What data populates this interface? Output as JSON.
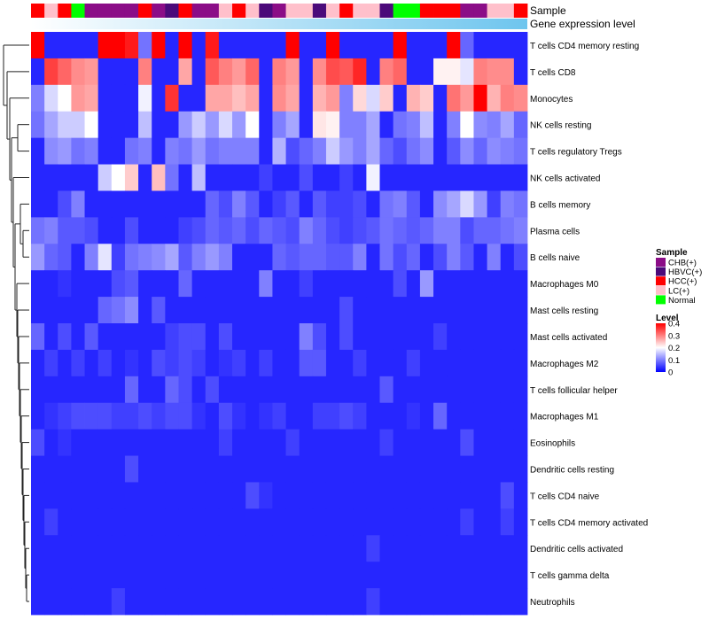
{
  "chart_data": {
    "type": "heatmap",
    "annotation_labels": {
      "sample": "Sample",
      "gene_expression": "Gene expression level"
    },
    "row_labels": [
      "T cells CD4 memory resting",
      "T cells CD8",
      "Monocytes",
      "NK cells resting",
      "T cells regulatory  Tregs",
      "NK cells activated",
      "B cells memory",
      "Plasma cells",
      "B cells naive",
      "Macrophages M0",
      "Mast cells resting",
      "Mast cells activated",
      "Macrophages M2",
      "T cells follicular helper",
      "Macrophages M1",
      "Eosinophils",
      "Dendritic cells resting",
      "T cells CD4 naive",
      "T cells CD4 memory activated",
      "Dendritic cells activated",
      "T cells gamma delta",
      "Neutrophils"
    ],
    "sample_groups": [
      "HCC(+)",
      "LC(+)",
      "HCC(+)",
      "Normal",
      "CHB(+)",
      "CHB(+)",
      "CHB(+)",
      "CHB(+)",
      "HCC(+)",
      "CHB(+)",
      "HBVC(+)",
      "HCC(+)",
      "CHB(+)",
      "CHB(+)",
      "LC(+)",
      "HCC(+)",
      "LC(+)",
      "HBVC(+)",
      "CHB(+)",
      "LC(+)",
      "LC(+)",
      "HBVC(+)",
      "LC(+)",
      "HCC(+)",
      "LC(+)",
      "LC(+)",
      "HBVC(+)",
      "Normal",
      "Normal",
      "HCC(+)",
      "HCC(+)",
      "HCC(+)",
      "CHB(+)",
      "CHB(+)",
      "LC(+)",
      "LC(+)",
      "HCC(+)"
    ],
    "values": [
      [
        0.4,
        0.03,
        0.03,
        0.03,
        0.03,
        0.4,
        0.4,
        0.38,
        0.09,
        0.4,
        0.03,
        0.4,
        0.03,
        0.38,
        0.03,
        0.03,
        0.03,
        0.03,
        0.03,
        0.4,
        0.03,
        0.03,
        0.4,
        0.03,
        0.03,
        0.03,
        0.03,
        0.4,
        0.03,
        0.03,
        0.03,
        0.4,
        0.08,
        0.03,
        0.03,
        0.03,
        0.03
      ],
      [
        0.03,
        0.35,
        0.32,
        0.29,
        0.28,
        0.03,
        0.03,
        0.03,
        0.3,
        0.03,
        0.03,
        0.27,
        0.03,
        0.33,
        0.3,
        0.28,
        0.32,
        0.03,
        0.3,
        0.28,
        0.03,
        0.29,
        0.34,
        0.33,
        0.37,
        0.03,
        0.3,
        0.32,
        0.03,
        0.03,
        0.21,
        0.21,
        0.18,
        0.3,
        0.29,
        0.29,
        0.03
      ],
      [
        0.1,
        0.17,
        0.2,
        0.28,
        0.27,
        0.03,
        0.03,
        0.03,
        0.19,
        0.03,
        0.36,
        0.03,
        0.03,
        0.27,
        0.27,
        0.25,
        0.27,
        0.03,
        0.29,
        0.27,
        0.03,
        0.26,
        0.28,
        0.1,
        0.23,
        0.17,
        0.24,
        0.03,
        0.26,
        0.24,
        0.03,
        0.31,
        0.28,
        0.4,
        0.26,
        0.3,
        0.29
      ],
      [
        0.09,
        0.13,
        0.16,
        0.16,
        0.2,
        0.03,
        0.03,
        0.03,
        0.15,
        0.03,
        0.03,
        0.12,
        0.16,
        0.12,
        0.17,
        0.12,
        0.2,
        0.03,
        0.1,
        0.13,
        0.03,
        0.22,
        0.21,
        0.1,
        0.1,
        0.13,
        0.03,
        0.09,
        0.1,
        0.15,
        0.03,
        0.1,
        0.2,
        0.11,
        0.1,
        0.13,
        0.08
      ],
      [
        0.03,
        0.11,
        0.12,
        0.09,
        0.1,
        0.03,
        0.03,
        0.09,
        0.1,
        0.03,
        0.1,
        0.09,
        0.12,
        0.09,
        0.1,
        0.1,
        0.1,
        0.03,
        0.14,
        0.06,
        0.08,
        0.1,
        0.16,
        0.12,
        0.1,
        0.13,
        0.08,
        0.06,
        0.09,
        0.11,
        0.03,
        0.07,
        0.11,
        0.08,
        0.11,
        0.1,
        0.09
      ],
      [
        0.03,
        0.03,
        0.03,
        0.03,
        0.03,
        0.16,
        0.2,
        0.24,
        0.03,
        0.25,
        0.09,
        0.03,
        0.15,
        0.03,
        0.03,
        0.03,
        0.03,
        0.05,
        0.03,
        0.03,
        0.06,
        0.03,
        0.03,
        0.05,
        0.03,
        0.19,
        0.03,
        0.03,
        0.03,
        0.03,
        0.03,
        0.03,
        0.03,
        0.03,
        0.03,
        0.03,
        0.03
      ],
      [
        0.03,
        0.03,
        0.06,
        0.1,
        0.03,
        0.03,
        0.03,
        0.03,
        0.03,
        0.03,
        0.03,
        0.03,
        0.03,
        0.08,
        0.06,
        0.1,
        0.07,
        0.03,
        0.05,
        0.07,
        0.03,
        0.07,
        0.05,
        0.05,
        0.06,
        0.03,
        0.09,
        0.1,
        0.07,
        0.03,
        0.11,
        0.13,
        0.17,
        0.12,
        0.05,
        0.1,
        0.09
      ],
      [
        0.09,
        0.1,
        0.07,
        0.07,
        0.06,
        0.03,
        0.03,
        0.06,
        0.03,
        0.03,
        0.03,
        0.05,
        0.06,
        0.08,
        0.07,
        0.08,
        0.06,
        0.08,
        0.07,
        0.06,
        0.1,
        0.08,
        0.06,
        0.05,
        0.06,
        0.07,
        0.09,
        0.08,
        0.07,
        0.08,
        0.1,
        0.1,
        0.06,
        0.08,
        0.08,
        0.09,
        0.1
      ],
      [
        0.12,
        0.08,
        0.07,
        0.03,
        0.1,
        0.18,
        0.05,
        0.09,
        0.1,
        0.11,
        0.13,
        0.07,
        0.1,
        0.12,
        0.1,
        0.03,
        0.03,
        0.03,
        0.08,
        0.07,
        0.08,
        0.08,
        0.07,
        0.07,
        0.1,
        0.03,
        0.09,
        0.06,
        0.08,
        0.03,
        0.06,
        0.1,
        0.07,
        0.03,
        0.1,
        0.03,
        0.06
      ],
      [
        0.03,
        0.03,
        0.04,
        0.03,
        0.03,
        0.03,
        0.06,
        0.07,
        0.03,
        0.03,
        0.03,
        0.08,
        0.03,
        0.03,
        0.03,
        0.03,
        0.03,
        0.1,
        0.03,
        0.03,
        0.05,
        0.03,
        0.03,
        0.03,
        0.03,
        0.03,
        0.03,
        0.06,
        0.03,
        0.12,
        0.03,
        0.03,
        0.03,
        0.03,
        0.03,
        0.03,
        0.03
      ],
      [
        0.03,
        0.03,
        0.03,
        0.03,
        0.03,
        0.08,
        0.09,
        0.11,
        0.03,
        0.07,
        0.03,
        0.03,
        0.03,
        0.03,
        0.03,
        0.03,
        0.03,
        0.03,
        0.03,
        0.03,
        0.03,
        0.03,
        0.03,
        0.06,
        0.03,
        0.03,
        0.03,
        0.03,
        0.03,
        0.03,
        0.03,
        0.03,
        0.03,
        0.03,
        0.03,
        0.03,
        0.03
      ],
      [
        0.08,
        0.03,
        0.06,
        0.03,
        0.07,
        0.03,
        0.03,
        0.03,
        0.03,
        0.03,
        0.05,
        0.06,
        0.06,
        0.03,
        0.06,
        0.03,
        0.03,
        0.03,
        0.03,
        0.03,
        0.1,
        0.06,
        0.03,
        0.06,
        0.03,
        0.03,
        0.03,
        0.03,
        0.03,
        0.03,
        0.05,
        0.03,
        0.03,
        0.03,
        0.03,
        0.03,
        0.03
      ],
      [
        0.03,
        0.05,
        0.03,
        0.05,
        0.03,
        0.05,
        0.03,
        0.04,
        0.03,
        0.06,
        0.05,
        0.06,
        0.05,
        0.03,
        0.04,
        0.05,
        0.03,
        0.05,
        0.03,
        0.03,
        0.07,
        0.07,
        0.03,
        0.03,
        0.05,
        0.03,
        0.03,
        0.03,
        0.05,
        0.03,
        0.03,
        0.03,
        0.03,
        0.03,
        0.03,
        0.03,
        0.03
      ],
      [
        0.03,
        0.03,
        0.03,
        0.03,
        0.03,
        0.03,
        0.03,
        0.08,
        0.03,
        0.03,
        0.08,
        0.06,
        0.03,
        0.06,
        0.03,
        0.03,
        0.03,
        0.03,
        0.03,
        0.03,
        0.03,
        0.03,
        0.03,
        0.03,
        0.03,
        0.03,
        0.07,
        0.03,
        0.03,
        0.03,
        0.03,
        0.03,
        0.03,
        0.03,
        0.03,
        0.03,
        0.03
      ],
      [
        0.03,
        0.04,
        0.05,
        0.06,
        0.06,
        0.06,
        0.05,
        0.05,
        0.06,
        0.05,
        0.06,
        0.06,
        0.04,
        0.03,
        0.06,
        0.04,
        0.03,
        0.04,
        0.05,
        0.03,
        0.03,
        0.05,
        0.05,
        0.06,
        0.05,
        0.03,
        0.03,
        0.03,
        0.04,
        0.03,
        0.08,
        0.03,
        0.03,
        0.03,
        0.03,
        0.03,
        0.03
      ],
      [
        0.06,
        0.03,
        0.04,
        0.03,
        0.03,
        0.03,
        0.03,
        0.03,
        0.03,
        0.03,
        0.03,
        0.03,
        0.03,
        0.03,
        0.05,
        0.03,
        0.03,
        0.03,
        0.03,
        0.05,
        0.03,
        0.03,
        0.03,
        0.03,
        0.03,
        0.03,
        0.05,
        0.03,
        0.03,
        0.03,
        0.03,
        0.03,
        0.06,
        0.03,
        0.03,
        0.03,
        0.03
      ],
      [
        0.03,
        0.03,
        0.03,
        0.03,
        0.03,
        0.03,
        0.03,
        0.06,
        0.03,
        0.03,
        0.03,
        0.03,
        0.03,
        0.03,
        0.03,
        0.03,
        0.03,
        0.03,
        0.03,
        0.03,
        0.03,
        0.03,
        0.03,
        0.03,
        0.03,
        0.03,
        0.03,
        0.03,
        0.03,
        0.03,
        0.03,
        0.03,
        0.03,
        0.03,
        0.03,
        0.03,
        0.03
      ],
      [
        0.03,
        0.03,
        0.03,
        0.03,
        0.03,
        0.03,
        0.03,
        0.03,
        0.03,
        0.03,
        0.03,
        0.03,
        0.03,
        0.03,
        0.03,
        0.03,
        0.06,
        0.04,
        0.03,
        0.03,
        0.03,
        0.03,
        0.03,
        0.03,
        0.03,
        0.03,
        0.03,
        0.03,
        0.03,
        0.03,
        0.03,
        0.03,
        0.03,
        0.03,
        0.03,
        0.06,
        0.03
      ],
      [
        0.03,
        0.05,
        0.03,
        0.03,
        0.03,
        0.03,
        0.03,
        0.03,
        0.03,
        0.03,
        0.03,
        0.03,
        0.03,
        0.03,
        0.03,
        0.03,
        0.03,
        0.03,
        0.03,
        0.03,
        0.03,
        0.03,
        0.03,
        0.03,
        0.03,
        0.03,
        0.03,
        0.03,
        0.03,
        0.03,
        0.03,
        0.03,
        0.05,
        0.03,
        0.03,
        0.05,
        0.03
      ],
      [
        0.03,
        0.03,
        0.03,
        0.03,
        0.03,
        0.03,
        0.03,
        0.03,
        0.03,
        0.03,
        0.03,
        0.03,
        0.03,
        0.03,
        0.03,
        0.03,
        0.03,
        0.03,
        0.03,
        0.03,
        0.03,
        0.03,
        0.03,
        0.03,
        0.03,
        0.05,
        0.03,
        0.03,
        0.03,
        0.03,
        0.03,
        0.03,
        0.03,
        0.03,
        0.03,
        0.03,
        0.03
      ],
      [
        0.03,
        0.03,
        0.03,
        0.03,
        0.03,
        0.03,
        0.03,
        0.03,
        0.03,
        0.03,
        0.03,
        0.03,
        0.03,
        0.03,
        0.03,
        0.03,
        0.03,
        0.03,
        0.03,
        0.03,
        0.03,
        0.03,
        0.03,
        0.03,
        0.03,
        0.03,
        0.03,
        0.03,
        0.03,
        0.03,
        0.03,
        0.03,
        0.03,
        0.03,
        0.03,
        0.03,
        0.03
      ],
      [
        0.03,
        0.03,
        0.03,
        0.03,
        0.03,
        0.03,
        0.05,
        0.03,
        0.03,
        0.03,
        0.03,
        0.03,
        0.03,
        0.03,
        0.03,
        0.03,
        0.03,
        0.03,
        0.03,
        0.03,
        0.03,
        0.03,
        0.03,
        0.03,
        0.03,
        0.05,
        0.03,
        0.03,
        0.03,
        0.03,
        0.03,
        0.03,
        0.03,
        0.03,
        0.03,
        0.03,
        0.03
      ]
    ],
    "color_scale": {
      "min": 0,
      "max": 0.4,
      "low": "#0000ff",
      "mid": "#ffffff",
      "mid_value": 0.2,
      "high": "#ff0000"
    },
    "legend": {
      "sample": {
        "title": "Sample",
        "entries": [
          {
            "label": "CHB(+)",
            "color": "#8b0d87"
          },
          {
            "label": "HBVC(+)",
            "color": "#4b0a7a"
          },
          {
            "label": "HCC(+)",
            "color": "#ff0000"
          },
          {
            "label": "LC(+)",
            "color": "#ffc0cb"
          },
          {
            "label": "Normal",
            "color": "#00ff00"
          }
        ]
      },
      "level": {
        "title": "Level",
        "ticks": [
          {
            "value": 0.4,
            "label": "0.4"
          },
          {
            "value": 0.3,
            "label": "0.3"
          },
          {
            "value": 0.2,
            "label": "0.2"
          },
          {
            "value": 0.1,
            "label": "0.1"
          },
          {
            "value": 0,
            "label": "0"
          }
        ]
      }
    },
    "gene_expression_color": "#6ec5ee",
    "dendrogram": "hierarchical clustering of rows (left side)"
  }
}
